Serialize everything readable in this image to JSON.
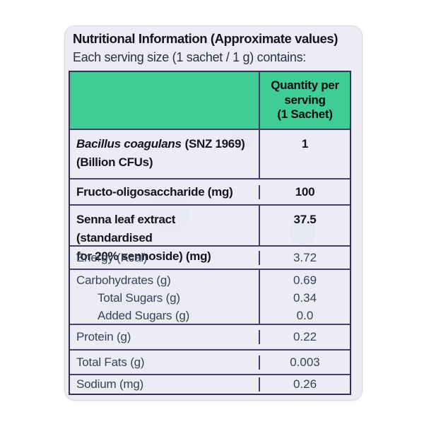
{
  "label": {
    "title": "Nutritional Information (Approximate values)",
    "subtitle": "Each serving size (1 sachet / 1 g) contains:",
    "colors": {
      "header_green": "#40cc95",
      "card_background": "#ecedf4",
      "table_border": "#453d6a",
      "bold_text": "#131322",
      "regular_text": "#3c3f58"
    },
    "table": {
      "header": {
        "col1": "",
        "col2_line1": "Quantity per",
        "col2_line2": "serving",
        "col2_line3": "(1 Sachet)"
      },
      "rows": {
        "bacillus": {
          "name_italic": "Bacillus coagulans",
          "name_rest": "(SNZ 1969)",
          "name_line2": "(Billion CFUs)",
          "value": "1"
        },
        "fructo": {
          "name": "Fructo-oligosaccharide (mg)",
          "value": "100"
        },
        "senna": {
          "name_line1": "Senna leaf extract (standardised",
          "name_line2": "for 20% sennoside) (mg)",
          "value": "37.5"
        },
        "energy": {
          "name": "Energy (Kcal)",
          "value": "3.72"
        },
        "carbs": {
          "name": "Carbohydrates (g)",
          "value": "0.69",
          "sub1_name": "Total Sugars (g)",
          "sub1_value": "0.34",
          "sub2_name": "Added Sugars (g)",
          "sub2_value": "0.0"
        },
        "protein": {
          "name": "Protein (g)",
          "value": "0.22"
        },
        "fats": {
          "name": "Total Fats (g)",
          "value": "0.003"
        },
        "sodium": {
          "name": "Sodium (mg)",
          "value": "0.26"
        }
      }
    }
  }
}
